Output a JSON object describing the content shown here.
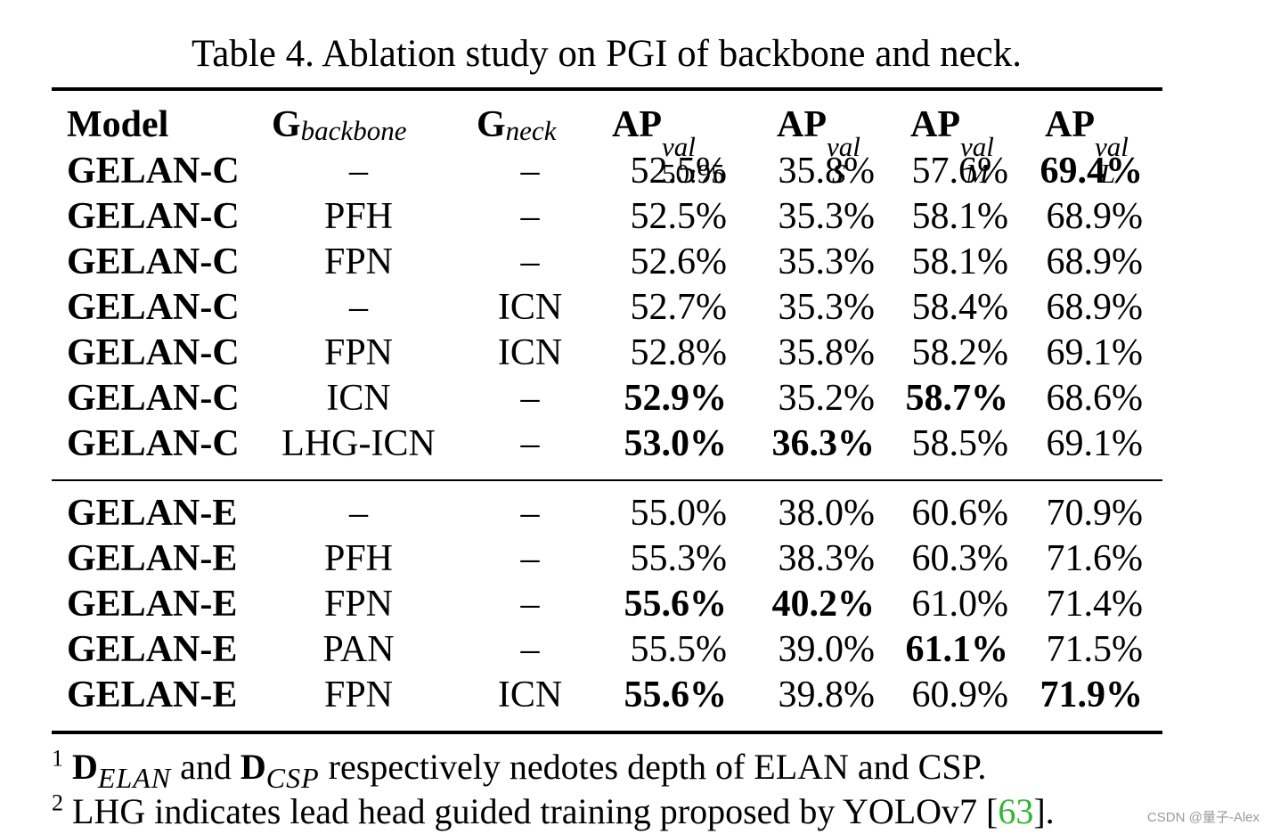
{
  "caption": "Table 4. Ablation study on PGI of backbone and neck.",
  "headers": {
    "model": "Model",
    "backbone_main": "G",
    "backbone_sub": "backbone",
    "neck_main": "G",
    "neck_sub": "neck",
    "ap_main": "AP",
    "ap_sup": "val",
    "ap_sub": "50:95",
    "aps_main": "AP",
    "aps_sup": "val",
    "aps_sub": "S",
    "apm_main": "AP",
    "apm_sup": "val",
    "apm_sub": "M",
    "apl_main": "AP",
    "apl_sup": "val",
    "apl_sub": "L"
  },
  "group_c": [
    {
      "model": "GELAN-C",
      "backbone": "–",
      "neck": "–",
      "ap": "52.5%",
      "aps": "35.8%",
      "apm": "57.6%",
      "apl": "69.4%"
    },
    {
      "model": "GELAN-C",
      "backbone": "PFH",
      "neck": "–",
      "ap": "52.5%",
      "aps": "35.3%",
      "apm": "58.1%",
      "apl": "68.9%"
    },
    {
      "model": "GELAN-C",
      "backbone": "FPN",
      "neck": "–",
      "ap": "52.6%",
      "aps": "35.3%",
      "apm": "58.1%",
      "apl": "68.9%"
    },
    {
      "model": "GELAN-C",
      "backbone": "–",
      "neck": "ICN",
      "ap": "52.7%",
      "aps": "35.3%",
      "apm": "58.4%",
      "apl": "68.9%"
    },
    {
      "model": "GELAN-C",
      "backbone": "FPN",
      "neck": "ICN",
      "ap": "52.8%",
      "aps": "35.8%",
      "apm": "58.2%",
      "apl": "69.1%"
    },
    {
      "model": "GELAN-C",
      "backbone": "ICN",
      "neck": "–",
      "ap": "52.9%",
      "aps": "35.2%",
      "apm": "58.7%",
      "apl": "68.6%"
    },
    {
      "model": "GELAN-C",
      "backbone": "LHG-ICN",
      "neck": "–",
      "ap": "53.0%",
      "aps": "36.3%",
      "apm": "58.5%",
      "apl": "69.1%"
    }
  ],
  "group_e": [
    {
      "model": "GELAN-E",
      "backbone": "–",
      "neck": "–",
      "ap": "55.0%",
      "aps": "38.0%",
      "apm": "60.6%",
      "apl": "70.9%"
    },
    {
      "model": "GELAN-E",
      "backbone": "PFH",
      "neck": "–",
      "ap": "55.3%",
      "aps": "38.3%",
      "apm": "60.3%",
      "apl": "71.6%"
    },
    {
      "model": "GELAN-E",
      "backbone": "FPN",
      "neck": "–",
      "ap": "55.6%",
      "aps": "40.2%",
      "apm": "61.0%",
      "apl": "71.4%"
    },
    {
      "model": "GELAN-E",
      "backbone": "PAN",
      "neck": "–",
      "ap": "55.5%",
      "aps": "39.0%",
      "apm": "61.1%",
      "apl": "71.5%"
    },
    {
      "model": "GELAN-E",
      "backbone": "FPN",
      "neck": "ICN",
      "ap": "55.6%",
      "aps": "39.8%",
      "apm": "60.9%",
      "apl": "71.9%"
    }
  ],
  "footnotes": {
    "n1_num": "1",
    "n1_d1": "D",
    "n1_d1_sub": "ELAN",
    "n1_and": " and ",
    "n1_d2": "D",
    "n1_d2_sub": "CSP",
    "n1_text": " respectively nedotes depth of ELAN and CSP.",
    "n2_num": "2",
    "n2_text": " LHG indicates lead head guided training proposed by YOLOv7 [",
    "n2_cite": "63",
    "n2_end": "]."
  },
  "watermark": "CSDN @量子-Alex"
}
